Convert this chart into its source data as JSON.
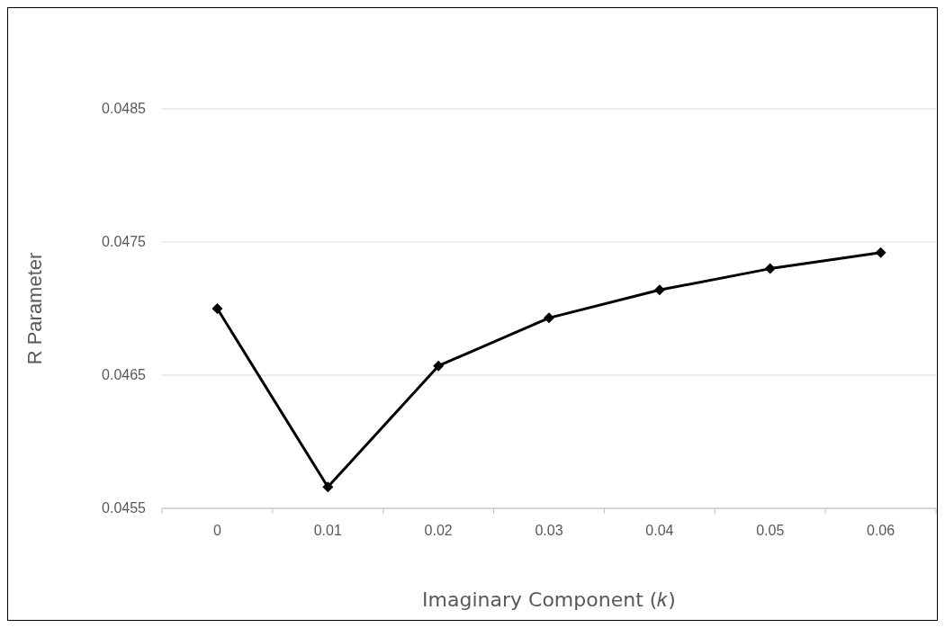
{
  "chart_data": {
    "type": "line",
    "xlabel": "Imaginary Component (𝑘)",
    "ylabel": "R Parameter",
    "categories": [
      "0",
      "0.01",
      "0.02",
      "0.03",
      "0.04",
      "0.05",
      "0.06"
    ],
    "series": [
      {
        "color": "#000000",
        "values": [
          0.047,
          0.04566,
          0.04657,
          0.04693,
          0.04714,
          0.0473,
          0.04742
        ]
      }
    ],
    "ylim": [
      0.0455,
      0.0485
    ],
    "yticks": [
      0.0455,
      0.0465,
      0.0475,
      0.0485
    ],
    "grid": "y",
    "marker": "diamond",
    "line_style": "solid"
  }
}
